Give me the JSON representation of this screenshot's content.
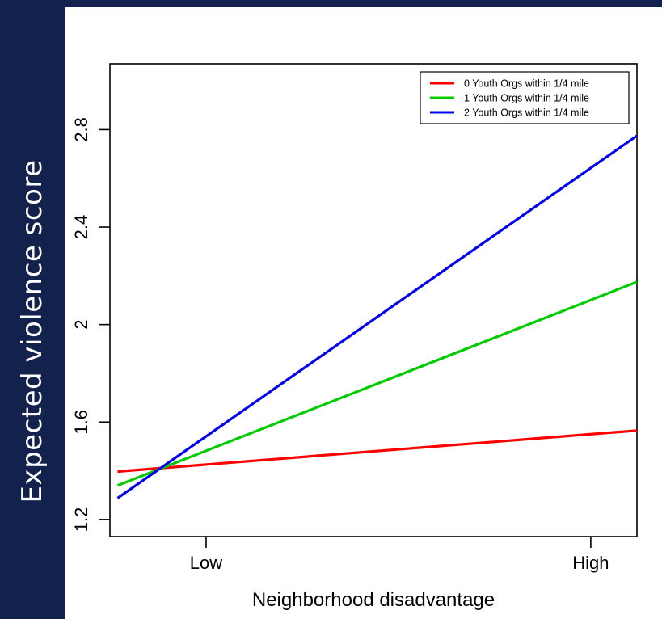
{
  "slide": {
    "ylabel": "Expected violence score"
  },
  "chart_data": {
    "type": "line",
    "title": "",
    "xlabel": "Neighborhood disadvantage",
    "ylabel": "Expected violence score",
    "categories": [
      "Low",
      "High"
    ],
    "x_range": [
      -0.25,
      1.12
    ],
    "ylim": [
      1.13,
      3.07
    ],
    "yticks": [
      "1.2",
      "1.6",
      "2",
      "2.4",
      "2.8"
    ],
    "ytick_values": [
      1.2,
      1.6,
      2.0,
      2.4,
      2.8
    ],
    "grid": false,
    "legend_position": "top-right",
    "series": [
      {
        "name": "0 Youth Orgs within 1/4 mile",
        "color": "#ff0000",
        "x": [
          -0.23,
          1.12
        ],
        "values": [
          1.397,
          1.565
        ]
      },
      {
        "name": "1 Youth Orgs within 1/4 mile",
        "color": "#00cc00",
        "x": [
          -0.23,
          1.12
        ],
        "values": [
          1.34,
          2.175
        ]
      },
      {
        "name": "2 Youth Orgs within 1/4 mile",
        "color": "#0000ee",
        "x": [
          -0.23,
          1.12
        ],
        "values": [
          1.288,
          2.775
        ]
      }
    ]
  }
}
